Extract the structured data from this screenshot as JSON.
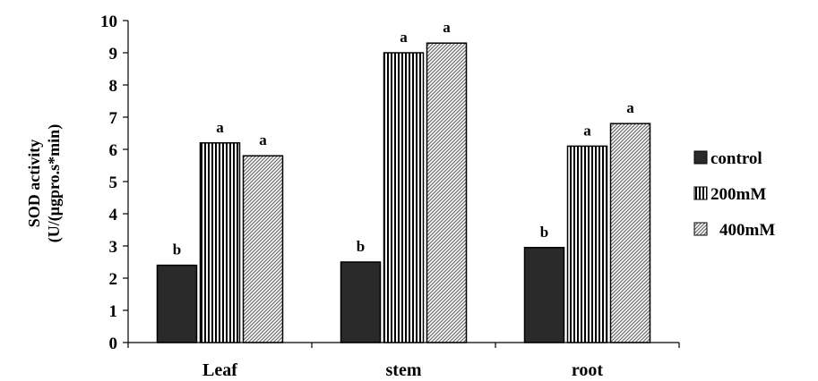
{
  "chart_data": {
    "type": "bar",
    "title": "",
    "xlabel": "",
    "ylabel": [
      "SOD activity",
      "(U/(μgpro.s*min)"
    ],
    "ylim": [
      0,
      10
    ],
    "yticks": [
      0,
      1,
      2,
      3,
      4,
      5,
      6,
      7,
      8,
      9,
      10
    ],
    "grid": false,
    "legend_position": "right",
    "categories": [
      "Leaf",
      "stem",
      "root"
    ],
    "series": [
      {
        "name": "control",
        "values": [
          2.4,
          2.5,
          2.95
        ],
        "labels": [
          "b",
          "b",
          "b"
        ],
        "pattern": "solid",
        "color": "#2a2a2a"
      },
      {
        "name": "200mM",
        "values": [
          6.2,
          9.0,
          6.1
        ],
        "labels": [
          "a",
          "a",
          "a"
        ],
        "pattern": "vertical",
        "color": "#000000"
      },
      {
        "name": "400mM",
        "values": [
          5.8,
          9.3,
          6.8
        ],
        "labels": [
          "a",
          "a",
          "a"
        ],
        "pattern": "diagonal",
        "color": "#000000"
      }
    ]
  }
}
